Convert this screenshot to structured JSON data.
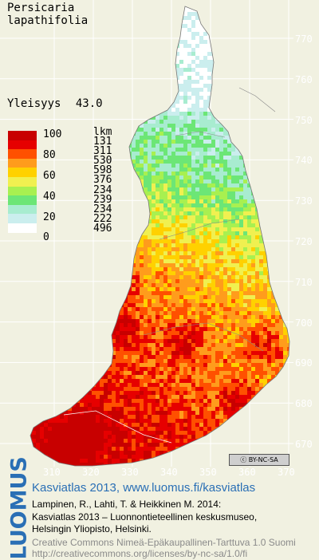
{
  "species": {
    "line1": "Persicaria",
    "line2": "lapathifolia"
  },
  "frequency": {
    "label": "Yleisyys",
    "value": "43.0"
  },
  "legend": {
    "header": "lkm",
    "classes": [
      {
        "label": "100",
        "color": "#c80000",
        "count": "131"
      },
      {
        "label": "",
        "color": "#e60000",
        "count": "311"
      },
      {
        "label": "80",
        "color": "#ff5000",
        "count": "530"
      },
      {
        "label": "",
        "color": "#ff9c1c",
        "count": "598"
      },
      {
        "label": "60",
        "color": "#ffd100",
        "count": "376"
      },
      {
        "label": "",
        "color": "#f0f050",
        "count": "234"
      },
      {
        "label": "40",
        "color": "#a8f050",
        "count": "239"
      },
      {
        "label": "",
        "color": "#6ce676",
        "count": "234"
      },
      {
        "label": "20",
        "color": "#a8ecd0",
        "count": "222"
      },
      {
        "label": "",
        "color": "#cbeeee",
        "count": ""
      },
      {
        "label": "0",
        "color": "#ffffff",
        "count": "496"
      }
    ]
  },
  "y_ticks": [
    "770",
    "760",
    "750",
    "740",
    "730",
    "720",
    "710",
    "700",
    "690",
    "680",
    "670"
  ],
  "x_ticks": [
    "310",
    "320",
    "330",
    "340",
    "350",
    "360",
    "370"
  ],
  "license_badge": "BY-NC-SA",
  "logo": "LUOMUS",
  "credits": {
    "title": "Kasviatlas 2013, www.luomus.fi/kasviatlas",
    "line1": "Lampinen, R., Lahti, T. & Heikkinen M. 2014:",
    "line2": "Kasviatlas 2013 – Luonnontieteellinen keskusmuseo,",
    "line3": "Helsingin Yliopisto, Helsinki.",
    "license1": "Creative Commons Nimeä-Epäkaupallinen-Tarttuva 1.0 Suomi",
    "license2": "http://creativecommons.org/licenses/by-nc-sa/1.0/fi"
  }
}
